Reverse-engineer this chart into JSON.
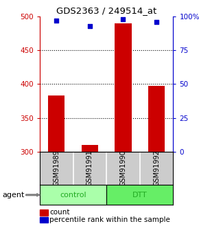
{
  "title": "GDS2363 / 249514_at",
  "samples": [
    "GSM91989",
    "GSM91991",
    "GSM91990",
    "GSM91992"
  ],
  "groups": [
    "control",
    "control",
    "DTT",
    "DTT"
  ],
  "bar_values": [
    383,
    310,
    490,
    397
  ],
  "percentile_values": [
    97,
    93,
    98,
    96
  ],
  "ylim_left": [
    300,
    500
  ],
  "ylim_right": [
    0,
    100
  ],
  "yticks_left": [
    300,
    350,
    400,
    450,
    500
  ],
  "yticks_right": [
    0,
    25,
    50,
    75,
    100
  ],
  "ytick_right_labels": [
    "0",
    "25",
    "50",
    "75",
    "100%"
  ],
  "grid_lines": [
    350,
    400,
    450
  ],
  "bar_color": "#cc0000",
  "dot_color": "#0000cc",
  "bar_width": 0.5,
  "control_color": "#aaffaa",
  "dtt_color": "#66ee66",
  "group_label_color": "#22aa22",
  "left_axis_color": "#cc0000",
  "right_axis_color": "#0000cc",
  "sample_box_color": "#cccccc",
  "agent_label": "agent",
  "legend_count_label": "count",
  "legend_pct_label": "percentile rank within the sample"
}
